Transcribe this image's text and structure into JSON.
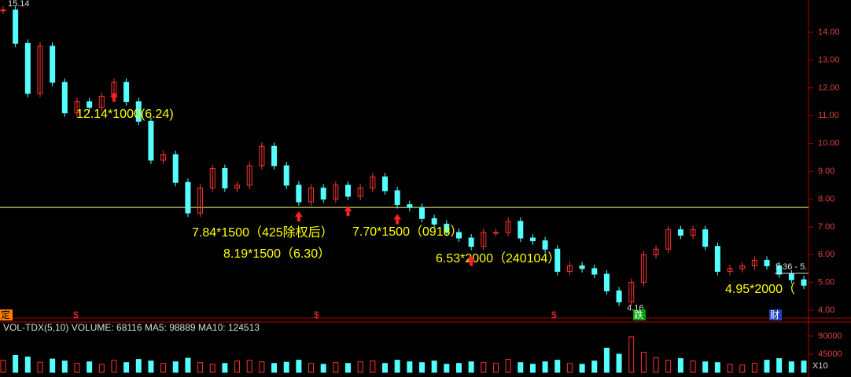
{
  "chart_data": {
    "type": "candle",
    "price": {
      "values": [
        14.8,
        13.6,
        11.8,
        13.5,
        12.2,
        11.1,
        11.5,
        11.3,
        11.7,
        12.2,
        11.5,
        10.8,
        9.4,
        9.6,
        8.6,
        7.5,
        8.4,
        9.1,
        8.4,
        8.5,
        9.2,
        9.9,
        9.2,
        8.5,
        7.9,
        8.4,
        8.0,
        8.5,
        8.1,
        8.4,
        8.8,
        8.3,
        7.8,
        7.7,
        7.3,
        7.1,
        6.8,
        6.6,
        6.3,
        6.8,
        6.8,
        7.2,
        6.6,
        6.5,
        6.2,
        5.4,
        5.6,
        5.5,
        5.3,
        4.7,
        4.3,
        5.0,
        6.0,
        6.2,
        6.9,
        6.7,
        6.9,
        6.3,
        5.4,
        5.5,
        5.6,
        5.8,
        5.6,
        5.3,
        5.1,
        4.9
      ],
      "up_color": "#ff3232",
      "down_color": "#54ffff",
      "ylim": [
        3.72,
        15.16
      ],
      "yticks": [
        {
          "value": 4,
          "label": "4.00"
        },
        {
          "value": 5,
          "label": "5.00"
        },
        {
          "value": 6,
          "label": "6.00"
        },
        {
          "value": 7,
          "label": "7.00"
        },
        {
          "value": 8,
          "label": "8.00"
        },
        {
          "value": 9,
          "label": "9.00"
        },
        {
          "value": 10,
          "label": "10.00"
        },
        {
          "value": 11,
          "label": "11.00"
        },
        {
          "value": 12,
          "label": "12.00"
        },
        {
          "value": 13,
          "label": "13.00"
        },
        {
          "value": 14,
          "label": "14.00"
        }
      ],
      "reference_line": 7.7,
      "high_label": "15.14",
      "low_label": "4.16",
      "last_label": "5.36 - 5."
    },
    "annotations": [
      {
        "text": "12.14*1000(6.24)",
        "arrow_index": 9
      },
      {
        "text": "7.84*1500（425除权后）",
        "arrow_index": 24
      },
      {
        "text": "7.70*1500（0918）",
        "arrow_index": 28
      },
      {
        "text": "8.19*1500（6.30）",
        "arrow_index": 32
      },
      {
        "text": "6.53*2000（240104）",
        "arrow_index": 38
      },
      {
        "text": "4.95*2000（",
        "arrow_index": null
      }
    ],
    "markers": [
      "定",
      "$",
      "$",
      "$",
      "跌",
      "财"
    ],
    "volume": {
      "header": "VOL-TDX(5,10) VOLUME: 68116 MA5: 98889 MA10: 124513",
      "values": [
        30000,
        42000,
        38000,
        25000,
        33000,
        28000,
        22000,
        26000,
        20000,
        30000,
        24000,
        32000,
        28000,
        22000,
        26000,
        35000,
        24000,
        20000,
        22000,
        28000,
        30000,
        26000,
        22000,
        25000,
        30000,
        22000,
        20000,
        24000,
        22000,
        26000,
        28000,
        22000,
        30000,
        26000,
        24000,
        28000,
        20000,
        22000,
        26000,
        24000,
        22000,
        32000,
        24000,
        20000,
        26000,
        30000,
        22000,
        20000,
        28000,
        60000,
        45000,
        88000,
        50000,
        36000,
        30000,
        34000,
        28000,
        26000,
        24000,
        20000,
        18000,
        22000,
        30000,
        34000,
        26000,
        28000
      ],
      "ylim": [
        0,
        125000
      ],
      "yticks": [
        90000,
        45000
      ],
      "scale_label": "X10"
    }
  }
}
